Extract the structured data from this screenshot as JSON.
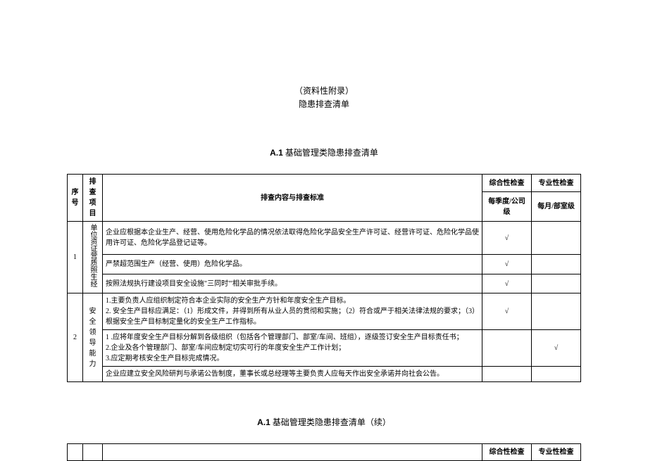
{
  "header": {
    "line1": "（资料性附录）",
    "line2": "隐患排查清单"
  },
  "section1": {
    "title_prefix": "A.1",
    "title_text": " 基础管理类隐患排查清单",
    "columns": {
      "seq": "序号",
      "item": "排查项目",
      "content": "排查内容与排查标准",
      "check1_top": "综合性检查",
      "check1_sub": "每季度/公司级",
      "check2_top": "专业性检查",
      "check2_sub": "每月/部室级"
    },
    "rows": [
      {
        "seq": "1",
        "item": "单位资证营质照生经",
        "lines": [
          {
            "text": "企业应根据本企业生产、经营、使用危险化学品的情况依法取得危险化学品安全生产许可证、经营许可证、危险化学品使用许可证、危险化学品登记证等。",
            "c1": "√",
            "c2": ""
          },
          {
            "text": "严禁超范围生产（经营、使用）危险化学品。",
            "c1": "√",
            "c2": ""
          },
          {
            "text": "按照法规执行建设项目安全设施\"三同时\"'相关审批手续。",
            "c1": "√",
            "c2": ""
          }
        ]
      },
      {
        "seq": "2",
        "item": "安全领导能力",
        "lines": [
          {
            "text": "1.主要负责人应组织制定符合本企业实际的安全生产方针和年度安全生产目标。\n2. 安全生产目标应满足：（1）形成文件，并得到所有从业人员的贯彻和实施；（2）符合或严于相关法律法规的要求；（3）根据安全生产目标制定量化的安全生产工作指标。",
            "c1": "√",
            "c2": ""
          },
          {
            "text": "1          .应将年度安全生产目标分解到各级组织（包括各个管理部门、部室/车间、班组），逐级签订安全生产目标责任书；\n2.企业及各个管理部门、部室/车间应制定切实可行的年度安全生产工作计划；\n3.应定期考核安全生产目标完成情况。",
            "c1": "",
            "c2": "√"
          },
          {
            "text": "企业应建立安全风险研判与承诺公告制度，董事长或总经理等主要负责人应每天作出安全承诺并向社会公告。",
            "c1": "",
            "c2": ""
          }
        ]
      }
    ]
  },
  "section2": {
    "title_prefix": "A.1",
    "title_text": " 基础管理类隐患排查清单（续）",
    "columns": {
      "check1_top": "综合性检查",
      "check2_top": "专业性检查"
    }
  },
  "check_mark": "√"
}
